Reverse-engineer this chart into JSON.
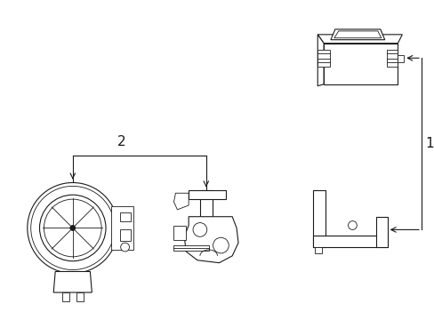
{
  "background_color": "#ffffff",
  "line_color": "#1a1a1a",
  "fig_width": 4.89,
  "fig_height": 3.6,
  "dpi": 100,
  "label_1": "1",
  "label_2": "2",
  "label_fontsize": 11
}
